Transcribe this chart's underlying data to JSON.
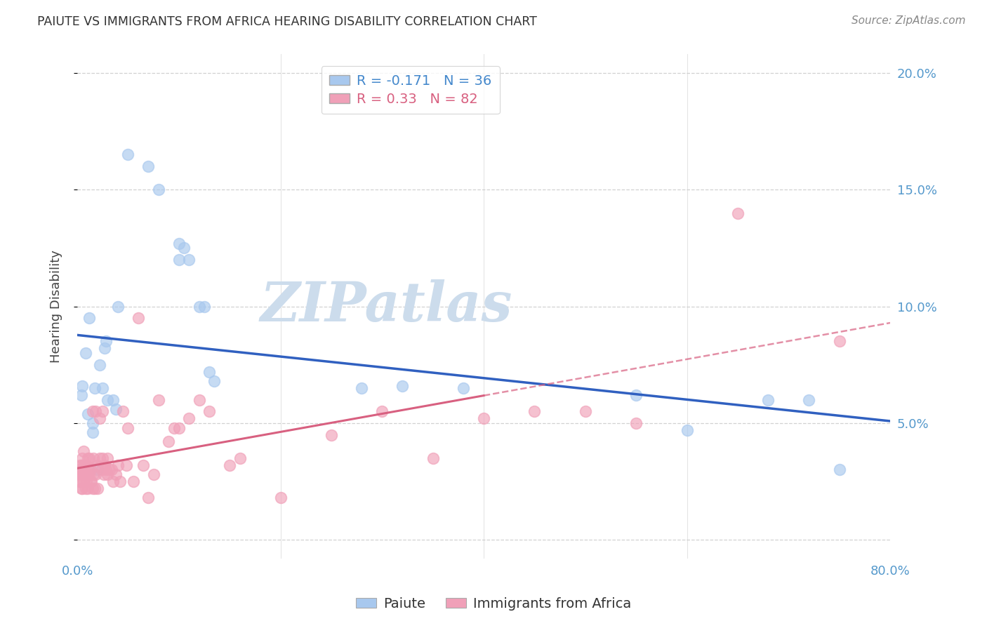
{
  "title": "PAIUTE VS IMMIGRANTS FROM AFRICA HEARING DISABILITY CORRELATION CHART",
  "source": "Source: ZipAtlas.com",
  "ylabel": "Hearing Disability",
  "yticks": [
    0.0,
    0.05,
    0.1,
    0.15,
    0.2
  ],
  "ytick_labels": [
    "",
    "5.0%",
    "10.0%",
    "15.0%",
    "20.0%"
  ],
  "xlim": [
    0.0,
    0.8
  ],
  "ylim": [
    -0.008,
    0.208
  ],
  "paiute_R": -0.171,
  "paiute_N": 36,
  "africa_R": 0.33,
  "africa_N": 82,
  "paiute_color": "#a8c8ee",
  "africa_color": "#f0a0b8",
  "paiute_line_color": "#3060c0",
  "africa_line_color": "#d86080",
  "watermark": "ZIPatlas",
  "watermark_color": "#ccdcec",
  "legend_box_color": "#dddddd",
  "paiute_x": [
    0.004,
    0.005,
    0.008,
    0.01,
    0.012,
    0.015,
    0.015,
    0.017,
    0.02,
    0.022,
    0.025,
    0.027,
    0.028,
    0.03,
    0.035,
    0.038,
    0.04,
    0.05,
    0.07,
    0.08,
    0.1,
    0.1,
    0.105,
    0.11,
    0.12,
    0.125,
    0.13,
    0.135,
    0.28,
    0.32,
    0.38,
    0.55,
    0.6,
    0.68,
    0.72,
    0.75
  ],
  "paiute_y": [
    0.062,
    0.066,
    0.08,
    0.054,
    0.095,
    0.046,
    0.05,
    0.065,
    0.03,
    0.075,
    0.065,
    0.082,
    0.085,
    0.06,
    0.06,
    0.056,
    0.1,
    0.165,
    0.16,
    0.15,
    0.12,
    0.127,
    0.125,
    0.12,
    0.1,
    0.1,
    0.072,
    0.068,
    0.065,
    0.066,
    0.065,
    0.062,
    0.047,
    0.06,
    0.06,
    0.03
  ],
  "africa_x": [
    0.001,
    0.002,
    0.002,
    0.003,
    0.003,
    0.004,
    0.004,
    0.004,
    0.005,
    0.005,
    0.005,
    0.005,
    0.006,
    0.006,
    0.006,
    0.007,
    0.007,
    0.008,
    0.008,
    0.009,
    0.009,
    0.01,
    0.01,
    0.01,
    0.011,
    0.012,
    0.012,
    0.013,
    0.013,
    0.014,
    0.015,
    0.015,
    0.016,
    0.016,
    0.017,
    0.018,
    0.018,
    0.02,
    0.02,
    0.022,
    0.022,
    0.024,
    0.025,
    0.025,
    0.026,
    0.027,
    0.028,
    0.03,
    0.03,
    0.032,
    0.034,
    0.035,
    0.038,
    0.04,
    0.042,
    0.045,
    0.048,
    0.05,
    0.055,
    0.06,
    0.065,
    0.07,
    0.075,
    0.08,
    0.09,
    0.095,
    0.1,
    0.11,
    0.12,
    0.13,
    0.15,
    0.16,
    0.2,
    0.25,
    0.3,
    0.35,
    0.4,
    0.45,
    0.5,
    0.55,
    0.65,
    0.75
  ],
  "africa_y": [
    0.028,
    0.025,
    0.03,
    0.025,
    0.032,
    0.022,
    0.028,
    0.032,
    0.022,
    0.028,
    0.03,
    0.035,
    0.025,
    0.03,
    0.038,
    0.028,
    0.032,
    0.022,
    0.028,
    0.025,
    0.032,
    0.022,
    0.028,
    0.035,
    0.03,
    0.028,
    0.035,
    0.025,
    0.03,
    0.025,
    0.022,
    0.055,
    0.028,
    0.035,
    0.022,
    0.028,
    0.055,
    0.022,
    0.032,
    0.035,
    0.052,
    0.03,
    0.035,
    0.055,
    0.028,
    0.032,
    0.03,
    0.028,
    0.035,
    0.03,
    0.03,
    0.025,
    0.028,
    0.032,
    0.025,
    0.055,
    0.032,
    0.048,
    0.025,
    0.095,
    0.032,
    0.018,
    0.028,
    0.06,
    0.042,
    0.048,
    0.048,
    0.052,
    0.06,
    0.055,
    0.032,
    0.035,
    0.018,
    0.045,
    0.055,
    0.035,
    0.052,
    0.055,
    0.055,
    0.05,
    0.14,
    0.085
  ]
}
